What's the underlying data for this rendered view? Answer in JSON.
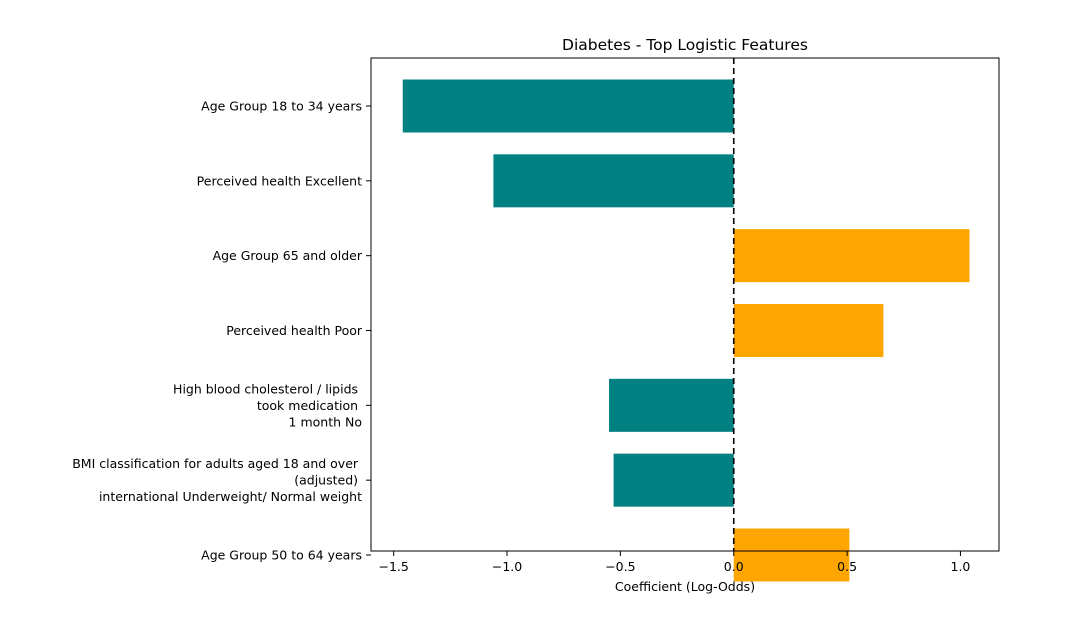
{
  "chart_data": {
    "type": "bar",
    "orientation": "horizontal",
    "title": "Diabetes - Top Logistic Features",
    "xlabel": "Coefficient (Log-Odds)",
    "ylabel": "",
    "xlim": [
      -1.6,
      1.17
    ],
    "xticks": [
      -1.5,
      -1.0,
      -0.5,
      0.0,
      0.5,
      1.0
    ],
    "xtick_labels": [
      "−1.5",
      "−1.0",
      "−0.5",
      "0.0",
      "0.5",
      "1.0"
    ],
    "grid": false,
    "legend": null,
    "zero_line": "dashed",
    "categories": [
      "Age Group 18 to 34 years",
      "Perceived health  Excellent",
      "Age Group 65 and older",
      "Perceived health  Poor",
      "High blood cholesterol / lipids \ntook medication \n1 month No",
      "BMI classification for adults aged 18 and over \n(adjusted) \ninternational Underweight/ Normal weight",
      "Age Group 50 to 64 years"
    ],
    "values": [
      -1.46,
      -1.06,
      1.04,
      0.66,
      -0.55,
      -0.53,
      0.51
    ],
    "colors": {
      "negative": "#008080",
      "positive": "#FFA500"
    }
  }
}
